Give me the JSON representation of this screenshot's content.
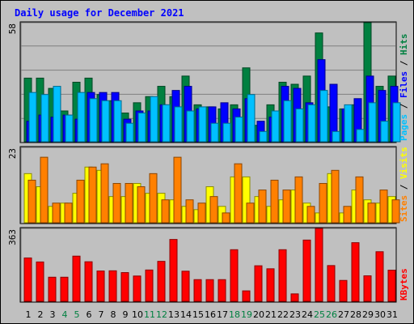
{
  "title": "Daily usage for December 2021",
  "colors": {
    "background": "#c0c0c0",
    "plot_bg": "#c0c0c0",
    "hits": "#008040",
    "files": "#0000ff",
    "pages": "#00c0ff",
    "visits": "#ffff00",
    "sites": "#ff8000",
    "kbytes": "#ff0000",
    "weekend_tick": "#008040",
    "weekday_tick": "#000000",
    "title": "#0000ff"
  },
  "chart_data": [
    {
      "type": "bar",
      "panel": "hits_files_pages",
      "ymax_label": "58",
      "ylim": [
        0,
        58
      ],
      "grid": true,
      "right_labels": [
        "Pages",
        "Files",
        "Hits"
      ],
      "categories": [
        "1",
        "2",
        "3",
        "4",
        "5",
        "6",
        "7",
        "8",
        "9",
        "10",
        "11",
        "12",
        "13",
        "14",
        "15",
        "16",
        "17",
        "18",
        "19",
        "20",
        "21",
        "22",
        "23",
        "24",
        "25",
        "26",
        "27",
        "28",
        "29",
        "30",
        "31"
      ],
      "series": [
        {
          "name": "Hits",
          "values": [
            31,
            31,
            26,
            15,
            29,
            31,
            23,
            20,
            14,
            19,
            22,
            27,
            22,
            32,
            18,
            17,
            16,
            18,
            36,
            8,
            18,
            29,
            28,
            32,
            53,
            17,
            16,
            18,
            58,
            27,
            32
          ]
        },
        {
          "name": "Files",
          "values": [
            10,
            13,
            12,
            13,
            11,
            24,
            24,
            24,
            11,
            15,
            15,
            18,
            25,
            27,
            16,
            17,
            19,
            16,
            21,
            10,
            12,
            27,
            26,
            19,
            40,
            28,
            16,
            21,
            32,
            25,
            27
          ]
        },
        {
          "name": "Pages",
          "values": [
            24,
            23,
            27,
            13,
            24,
            21,
            20,
            20,
            9,
            14,
            22,
            18,
            17,
            15,
            17,
            9,
            9,
            12,
            23,
            5,
            15,
            20,
            16,
            18,
            25,
            5,
            18,
            6,
            19,
            10,
            19
          ]
        }
      ]
    },
    {
      "type": "bar",
      "panel": "visits_sites",
      "ymax_label": "23",
      "ylim": [
        0,
        23
      ],
      "grid": true,
      "right_labels": [
        "Sites",
        "Visits"
      ],
      "categories": [
        "1",
        "2",
        "3",
        "4",
        "5",
        "6",
        "7",
        "8",
        "9",
        "10",
        "11",
        "12",
        "13",
        "14",
        "15",
        "16",
        "17",
        "18",
        "19",
        "20",
        "21",
        "22",
        "23",
        "24",
        "25",
        "26",
        "27",
        "28",
        "29",
        "30",
        "31"
      ],
      "series": [
        {
          "name": "Visits",
          "values": [
            15,
            11,
            5,
            6,
            9,
            17,
            16,
            8,
            8,
            12,
            9,
            9,
            7,
            5,
            4,
            11,
            5,
            14,
            14,
            8,
            5,
            7,
            10,
            6,
            3,
            15,
            3,
            10,
            7,
            6,
            8
          ]
        },
        {
          "name": "Sites",
          "values": [
            13,
            20,
            6,
            6,
            13,
            17,
            18,
            12,
            12,
            11,
            15,
            7,
            20,
            7,
            6,
            8,
            3,
            18,
            6,
            10,
            13,
            10,
            14,
            5,
            12,
            16,
            5,
            14,
            6,
            10,
            7
          ]
        }
      ]
    },
    {
      "type": "bar",
      "panel": "kbytes",
      "ymax_label": "363",
      "ylim": [
        0,
        363
      ],
      "grid": true,
      "right_labels": [
        "KBytes"
      ],
      "categories": [
        "1",
        "2",
        "3",
        "4",
        "5",
        "6",
        "7",
        "8",
        "9",
        "10",
        "11",
        "12",
        "13",
        "14",
        "15",
        "16",
        "17",
        "18",
        "19",
        "20",
        "21",
        "22",
        "23",
        "24",
        "25",
        "26",
        "27",
        "28",
        "29",
        "30",
        "31"
      ],
      "series": [
        {
          "name": "KBytes",
          "values": [
            216,
            196,
            120,
            120,
            225,
            197,
            151,
            152,
            143,
            126,
            156,
            199,
            308,
            150,
            108,
            108,
            108,
            257,
            52,
            177,
            162,
            257,
            37,
            305,
            363,
            178,
            104,
            292,
            127,
            247,
            155
          ]
        }
      ]
    }
  ],
  "days": [
    {
      "label": "1",
      "weekend": false
    },
    {
      "label": "2",
      "weekend": false
    },
    {
      "label": "3",
      "weekend": false
    },
    {
      "label": "4",
      "weekend": true
    },
    {
      "label": "5",
      "weekend": true
    },
    {
      "label": "6",
      "weekend": false
    },
    {
      "label": "7",
      "weekend": false
    },
    {
      "label": "8",
      "weekend": false
    },
    {
      "label": "9",
      "weekend": false
    },
    {
      "label": "10",
      "weekend": false
    },
    {
      "label": "11",
      "weekend": true
    },
    {
      "label": "12",
      "weekend": true
    },
    {
      "label": "13",
      "weekend": false
    },
    {
      "label": "14",
      "weekend": false
    },
    {
      "label": "15",
      "weekend": false
    },
    {
      "label": "16",
      "weekend": false
    },
    {
      "label": "17",
      "weekend": false
    },
    {
      "label": "18",
      "weekend": true
    },
    {
      "label": "19",
      "weekend": true
    },
    {
      "label": "20",
      "weekend": false
    },
    {
      "label": "21",
      "weekend": false
    },
    {
      "label": "22",
      "weekend": false
    },
    {
      "label": "23",
      "weekend": false
    },
    {
      "label": "24",
      "weekend": false
    },
    {
      "label": "25",
      "weekend": true
    },
    {
      "label": "26",
      "weekend": true
    },
    {
      "label": "27",
      "weekend": false
    },
    {
      "label": "28",
      "weekend": false
    },
    {
      "label": "29",
      "weekend": false
    },
    {
      "label": "30",
      "weekend": false
    },
    {
      "label": "31",
      "weekend": false
    }
  ]
}
